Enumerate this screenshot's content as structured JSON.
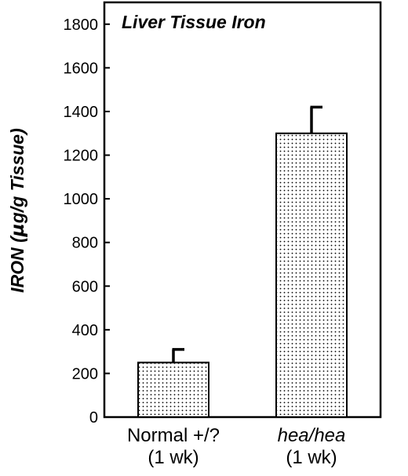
{
  "chart_data": {
    "type": "bar",
    "title": "Liver Tissue Iron",
    "ylabel_prefix": "IRON (",
    "ylabel_mu": "µ",
    "ylabel_suffix": "g/g Tissue)",
    "ylim": [
      0,
      1900
    ],
    "yticks": [
      "0",
      "200",
      "400",
      "600",
      "800",
      "1000",
      "1200",
      "1400",
      "1600",
      "1800"
    ],
    "categories": [
      {
        "line1": "Normal +/?",
        "line2": "(1 wk)",
        "italic": false
      },
      {
        "line1": "hea/hea",
        "line2": "(1 wk)",
        "italic": true
      }
    ],
    "values": [
      250,
      1300
    ],
    "errors": [
      60,
      120
    ],
    "grid": false,
    "legend": "none"
  }
}
